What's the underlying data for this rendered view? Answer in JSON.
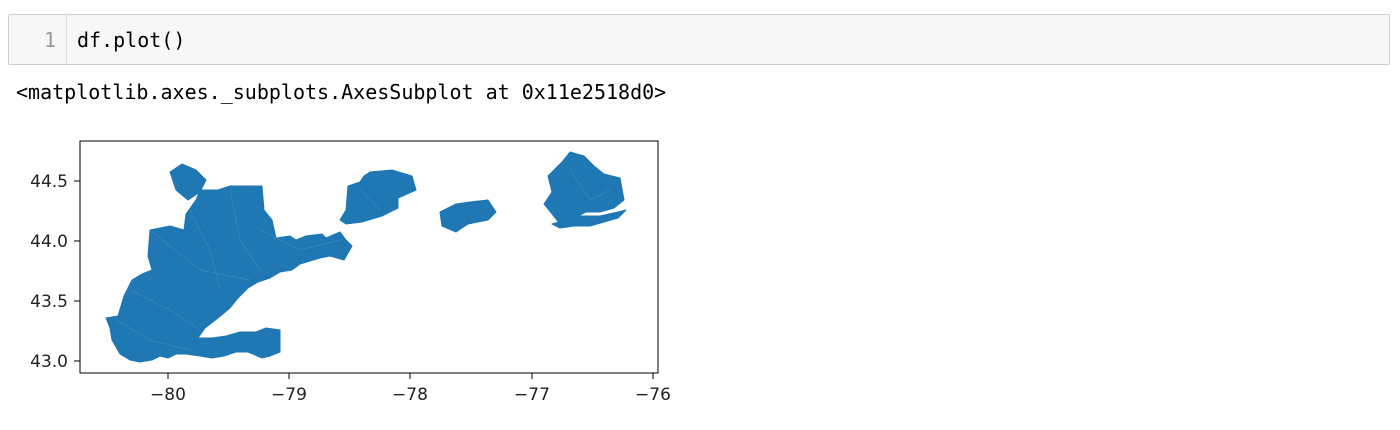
{
  "cell": {
    "line_number": "1",
    "code": "df.plot()"
  },
  "output": {
    "text": "<matplotlib.axes._subplots.AxesSubplot at 0x11e2518d0>"
  },
  "chart_data": {
    "type": "map",
    "fill_color": "#1f77b4",
    "xticks": [
      "−80",
      "−79",
      "−78",
      "−77",
      "−76"
    ],
    "yticks": [
      "43.0",
      "43.5",
      "44.0",
      "44.5"
    ],
    "xlim": [
      -80.75,
      -75.95
    ],
    "ylim": [
      42.95,
      44.82
    ]
  }
}
